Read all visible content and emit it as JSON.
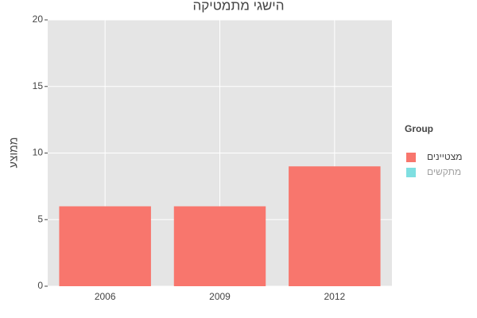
{
  "chart_data": {
    "type": "bar",
    "title": "הישגי מתמטיקה",
    "y_label": "ממוצע",
    "categories": [
      "2006",
      "2009",
      "2012"
    ],
    "legend_title": "Group",
    "legend_position": "right",
    "series": [
      {
        "name": "מצטיינים",
        "color": "#F8766D",
        "values": [
          6,
          6,
          9
        ],
        "visible": true
      },
      {
        "name": "מתקשים",
        "color": "#00BFC4",
        "visible": false
      }
    ],
    "ylim": [
      0,
      20
    ],
    "yticks": [
      0,
      5,
      10,
      15,
      20
    ],
    "grid": true
  }
}
